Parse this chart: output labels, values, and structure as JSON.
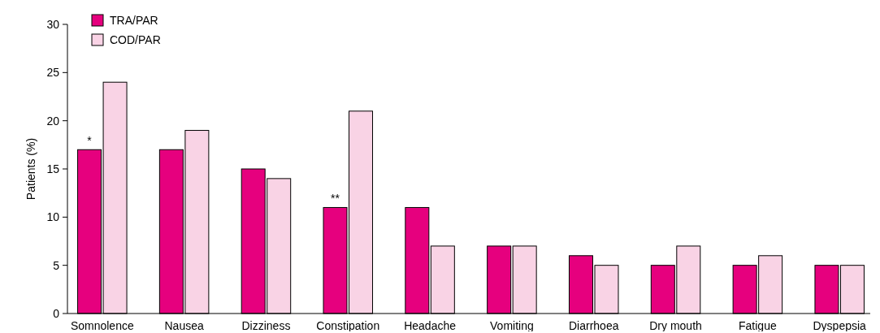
{
  "chart_data": {
    "type": "bar",
    "ylabel": "Patients (%)",
    "categories": [
      "Somnolence",
      "Nausea",
      "Dizziness",
      "Constipation",
      "Headache",
      "Vomiting",
      "Diarrhoea",
      "Dry mouth",
      "Fatigue",
      "Dyspepsia"
    ],
    "series": [
      {
        "name": "TRA/PAR",
        "color": "#e6007e",
        "values": [
          17,
          17,
          15,
          11,
          11,
          7,
          6,
          5,
          5,
          5
        ]
      },
      {
        "name": "COD/PAR",
        "color": "#f9d3e5",
        "values": [
          24,
          19,
          14,
          21,
          7,
          7,
          5,
          7,
          6,
          5
        ]
      }
    ],
    "ylim": [
      0,
      30
    ],
    "yticks": [
      0,
      5,
      10,
      15,
      20,
      25,
      30
    ],
    "grid": false,
    "legend": "top left",
    "annotations": [
      {
        "text": "*",
        "x": "Somnolence",
        "y": 17
      },
      {
        "text": "**",
        "x": "Constipation",
        "y": 11
      }
    ]
  }
}
